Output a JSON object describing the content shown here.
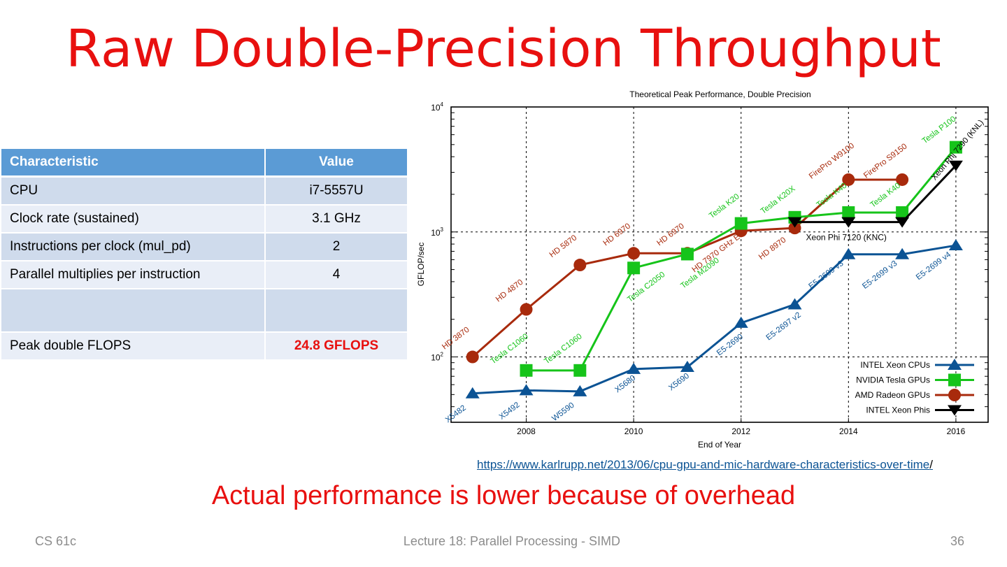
{
  "slide": {
    "title": "Raw Double-Precision Throughput",
    "subtitle": "Actual performance is lower because of overhead",
    "source_link": "https://www.karlrupp.net/2013/06/cpu-gpu-and-mic-hardware-characteristics-over-time",
    "source_link_tail": "/"
  },
  "table": {
    "headers": [
      "Characteristic",
      "Value"
    ],
    "rows": [
      {
        "label": "CPU",
        "value": "i7-5557U"
      },
      {
        "label": "Clock rate (sustained)",
        "value": "3.1 GHz"
      },
      {
        "label": "Instructions per clock (mul_pd)",
        "value": "2"
      },
      {
        "label": "Parallel multiplies per instruction",
        "value": "4"
      },
      {
        "label": "",
        "value": ""
      },
      {
        "label": "Peak double FLOPS",
        "value": "24.8 GFLOPS"
      }
    ]
  },
  "footer": {
    "course": "CS 61c",
    "lecture": "Lecture 18: Parallel Processing - SIMD",
    "page": "36"
  },
  "colors": {
    "title_red": "#e8100f",
    "table_header": "#5b9bd5",
    "intel": "#0b5394",
    "nvidia": "#16c41a",
    "amd": "#a82a0c",
    "phi": "#000000"
  },
  "chart_data": {
    "type": "line",
    "title": "Theoretical Peak Performance, Double Precision",
    "xlabel": "End of Year",
    "ylabel": "GFLOP/sec",
    "yscale": "log",
    "ylim": [
      30,
      10000
    ],
    "xlim": [
      2006.6,
      2016.6
    ],
    "xticks": [
      2008,
      2010,
      2012,
      2014,
      2016
    ],
    "yticks": [
      {
        "value": 100,
        "base": "10",
        "exp": "2"
      },
      {
        "value": 1000,
        "base": "10",
        "exp": "3"
      },
      {
        "value": 10000,
        "base": "10",
        "exp": "4"
      }
    ],
    "grid": true,
    "legend_position": "bottom-right",
    "series": [
      {
        "name": "INTEL Xeon CPUs",
        "marker": "triangle-up",
        "color": "#0b5394",
        "points": [
          {
            "x": 2007,
            "y": 51,
            "label": "X5482"
          },
          {
            "x": 2008,
            "y": 54,
            "label": "X5492"
          },
          {
            "x": 2009,
            "y": 53,
            "label": "W5590"
          },
          {
            "x": 2010,
            "y": 80,
            "label": "X5680"
          },
          {
            "x": 2011,
            "y": 83,
            "label": "X5690"
          },
          {
            "x": 2012,
            "y": 187,
            "label": "E5-2690"
          },
          {
            "x": 2013,
            "y": 263,
            "label": "E5-2697 v2"
          },
          {
            "x": 2014,
            "y": 662,
            "label": "E5-2699 v3"
          },
          {
            "x": 2015,
            "y": 662,
            "label": "E5-2699 v3"
          },
          {
            "x": 2016,
            "y": 780,
            "label": "E5-2699 v4"
          }
        ]
      },
      {
        "name": "NVIDIA Tesla GPUs",
        "marker": "square",
        "color": "#16c41a",
        "points": [
          {
            "x": 2008,
            "y": 78,
            "label": "Tesla C1060"
          },
          {
            "x": 2009,
            "y": 78,
            "label": "Tesla C1060"
          },
          {
            "x": 2010,
            "y": 515,
            "label": "Tesla C2050"
          },
          {
            "x": 2011,
            "y": 665,
            "label": "Tesla M2090"
          },
          {
            "x": 2012,
            "y": 1170,
            "label": "Tesla K20"
          },
          {
            "x": 2013,
            "y": 1310,
            "label": "Tesla K20X"
          },
          {
            "x": 2014,
            "y": 1430,
            "label": "Tesla K40"
          },
          {
            "x": 2015,
            "y": 1430,
            "label": "Tesla K40"
          },
          {
            "x": 2016,
            "y": 4760,
            "label": "Tesla P100"
          }
        ]
      },
      {
        "name": "AMD Radeon GPUs",
        "marker": "circle",
        "color": "#a82a0c",
        "points": [
          {
            "x": 2007,
            "y": 100,
            "label": "HD 3870"
          },
          {
            "x": 2008,
            "y": 240,
            "label": "HD 4870"
          },
          {
            "x": 2009,
            "y": 544,
            "label": "HD 5870"
          },
          {
            "x": 2010,
            "y": 675,
            "label": "HD 6970"
          },
          {
            "x": 2011,
            "y": 675,
            "label": "HD 6970"
          },
          {
            "x": 2012,
            "y": 1020,
            "label": "HD 7970 GHz Ed."
          },
          {
            "x": 2013,
            "y": 1075,
            "label": "HD 8970"
          },
          {
            "x": 2014,
            "y": 2620,
            "label": "FirePro W9100"
          },
          {
            "x": 2015,
            "y": 2620,
            "label": "FirePro S9150"
          }
        ]
      },
      {
        "name": "INTEL Xeon Phis",
        "marker": "triangle-down",
        "color": "#000000",
        "points": [
          {
            "x": 2013,
            "y": 1200,
            "label": ""
          },
          {
            "x": 2014,
            "y": 1200,
            "label": ""
          },
          {
            "x": 2015,
            "y": 1200,
            "label": ""
          },
          {
            "x": 2016,
            "y": 3400,
            "label": "Xeon Phi 7290 (KNL)"
          }
        ],
        "annotation": "Xeon Phi 7120 (KNC)"
      }
    ]
  }
}
